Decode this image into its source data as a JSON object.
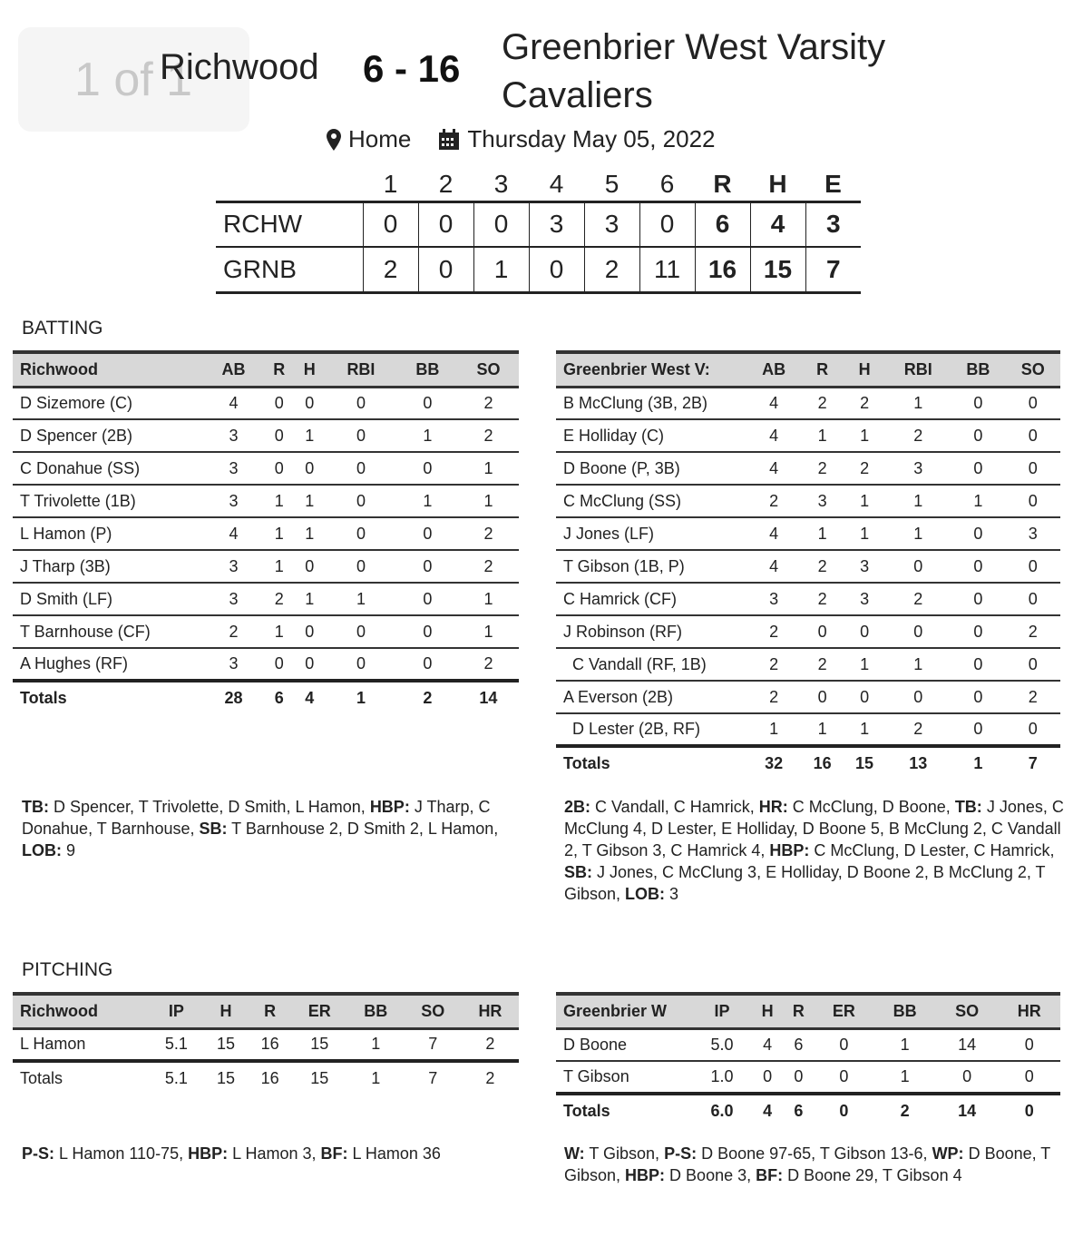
{
  "overlay": {
    "page_indicator": "1 of 1"
  },
  "header": {
    "away_team": "Richwood",
    "score": "6 - 16",
    "home_team": "Greenbrier West Varsity Cavaliers",
    "location_icon": "map-pin-icon",
    "location": "Home",
    "date_icon": "calendar-icon",
    "date": "Thursday May 05, 2022"
  },
  "linescore": {
    "columns": [
      "1",
      "2",
      "3",
      "4",
      "5",
      "6",
      "R",
      "H",
      "E"
    ],
    "rows": [
      {
        "team": "RCHW",
        "values": [
          "0",
          "0",
          "0",
          "3",
          "3",
          "0",
          "6",
          "4",
          "3"
        ]
      },
      {
        "team": "GRNB",
        "values": [
          "2",
          "0",
          "1",
          "0",
          "2",
          "11",
          "16",
          "15",
          "7"
        ]
      }
    ]
  },
  "batting": {
    "title": "BATTING",
    "away": {
      "columns": [
        "Richwood",
        "AB",
        "R",
        "H",
        "RBI",
        "BB",
        "SO"
      ],
      "rows": [
        [
          "D Sizemore (C)",
          "4",
          "0",
          "0",
          "0",
          "0",
          "2"
        ],
        [
          "D Spencer (2B)",
          "3",
          "0",
          "1",
          "0",
          "1",
          "2"
        ],
        [
          "C Donahue (SS)",
          "3",
          "0",
          "0",
          "0",
          "0",
          "1"
        ],
        [
          "T Trivolette (1B)",
          "3",
          "1",
          "1",
          "0",
          "1",
          "1"
        ],
        [
          "L Hamon (P)",
          "4",
          "1",
          "1",
          "0",
          "0",
          "2"
        ],
        [
          "J Tharp (3B)",
          "3",
          "1",
          "0",
          "0",
          "0",
          "2"
        ],
        [
          "D Smith (LF)",
          "3",
          "2",
          "1",
          "1",
          "0",
          "1"
        ],
        [
          "T Barnhouse (CF)",
          "2",
          "1",
          "0",
          "0",
          "0",
          "1"
        ],
        [
          "A Hughes (RF)",
          "3",
          "0",
          "0",
          "0",
          "0",
          "2"
        ]
      ],
      "totals": [
        "Totals",
        "28",
        "6",
        "4",
        "1",
        "2",
        "14"
      ],
      "notes": [
        {
          "label": "TB:",
          "text": " D Spencer, T Trivolette, D Smith, L Hamon, "
        },
        {
          "label": "HBP:",
          "text": " J Tharp, C Donahue, T Barnhouse, "
        },
        {
          "label": "SB:",
          "text": " T Barnhouse 2, D Smith 2, L Hamon, "
        },
        {
          "label": "LOB:",
          "text": " 9"
        }
      ]
    },
    "home": {
      "columns": [
        "Greenbrier West V:",
        "AB",
        "R",
        "H",
        "RBI",
        "BB",
        "SO"
      ],
      "rows": [
        [
          "B McClung (3B, 2B)",
          "4",
          "2",
          "2",
          "1",
          "0",
          "0"
        ],
        [
          "E Holliday (C)",
          "4",
          "1",
          "1",
          "2",
          "0",
          "0"
        ],
        [
          "D Boone (P, 3B)",
          "4",
          "2",
          "2",
          "3",
          "0",
          "0"
        ],
        [
          "C McClung (SS)",
          "2",
          "3",
          "1",
          "1",
          "1",
          "0"
        ],
        [
          "J Jones (LF)",
          "4",
          "1",
          "1",
          "1",
          "0",
          "3"
        ],
        [
          "T Gibson (1B, P)",
          "4",
          "2",
          "3",
          "0",
          "0",
          "0"
        ],
        [
          "C Hamrick (CF)",
          "3",
          "2",
          "3",
          "2",
          "0",
          "0"
        ],
        [
          "J Robinson (RF)",
          "2",
          "0",
          "0",
          "0",
          "0",
          "2"
        ],
        [
          "  C Vandall (RF, 1B)",
          "2",
          "2",
          "1",
          "1",
          "0",
          "0"
        ],
        [
          "A Everson (2B)",
          "2",
          "0",
          "0",
          "0",
          "0",
          "2"
        ],
        [
          "  D Lester (2B, RF)",
          "1",
          "1",
          "1",
          "2",
          "0",
          "0"
        ]
      ],
      "totals": [
        "Totals",
        "32",
        "16",
        "15",
        "13",
        "1",
        "7"
      ],
      "notes": [
        {
          "label": "2B:",
          "text": " C Vandall, C Hamrick, "
        },
        {
          "label": "HR:",
          "text": " C McClung, D Boone, "
        },
        {
          "label": "TB:",
          "text": " J Jones, C McClung 4, D Lester, E Holliday, D Boone 5, B McClung 2, C Vandall 2, T Gibson 3, C Hamrick 4, "
        },
        {
          "label": "HBP:",
          "text": " C McClung, D Lester, C Hamrick, "
        },
        {
          "label": "SB:",
          "text": " J Jones, C McClung 3, E Holliday, D Boone 2, B McClung 2, T Gibson, "
        },
        {
          "label": "LOB:",
          "text": " 3"
        }
      ]
    }
  },
  "pitching": {
    "title": "PITCHING",
    "away": {
      "columns": [
        "Richwood",
        "IP",
        "H",
        "R",
        "ER",
        "BB",
        "SO",
        "HR"
      ],
      "rows": [
        [
          "L Hamon",
          "5.1",
          "15",
          "16",
          "15",
          "1",
          "7",
          "2"
        ]
      ],
      "totals": [
        "Totals",
        "5.1",
        "15",
        "16",
        "15",
        "1",
        "7",
        "2"
      ],
      "notes": [
        {
          "label": "P-S:",
          "text": " L Hamon 110-75, "
        },
        {
          "label": "HBP:",
          "text": " L Hamon 3, "
        },
        {
          "label": "BF:",
          "text": " L Hamon 36"
        }
      ]
    },
    "home": {
      "columns": [
        "Greenbrier W",
        "IP",
        "H",
        "R",
        "ER",
        "BB",
        "SO",
        "HR"
      ],
      "rows": [
        [
          "D Boone",
          "5.0",
          "4",
          "6",
          "0",
          "1",
          "14",
          "0"
        ],
        [
          "T Gibson",
          "1.0",
          "0",
          "0",
          "0",
          "1",
          "0",
          "0"
        ]
      ],
      "totals": [
        "Totals",
        "6.0",
        "4",
        "6",
        "0",
        "2",
        "14",
        "0"
      ],
      "notes": [
        {
          "label": "W:",
          "text": " T Gibson, "
        },
        {
          "label": "P-S:",
          "text": " D Boone 97-65, T Gibson 13-6, "
        },
        {
          "label": "WP:",
          "text": " D Boone, T Gibson, "
        },
        {
          "label": "HBP:",
          "text": " D Boone 3, "
        },
        {
          "label": "BF:",
          "text": " D Boone 29, T Gibson 4"
        }
      ]
    }
  }
}
